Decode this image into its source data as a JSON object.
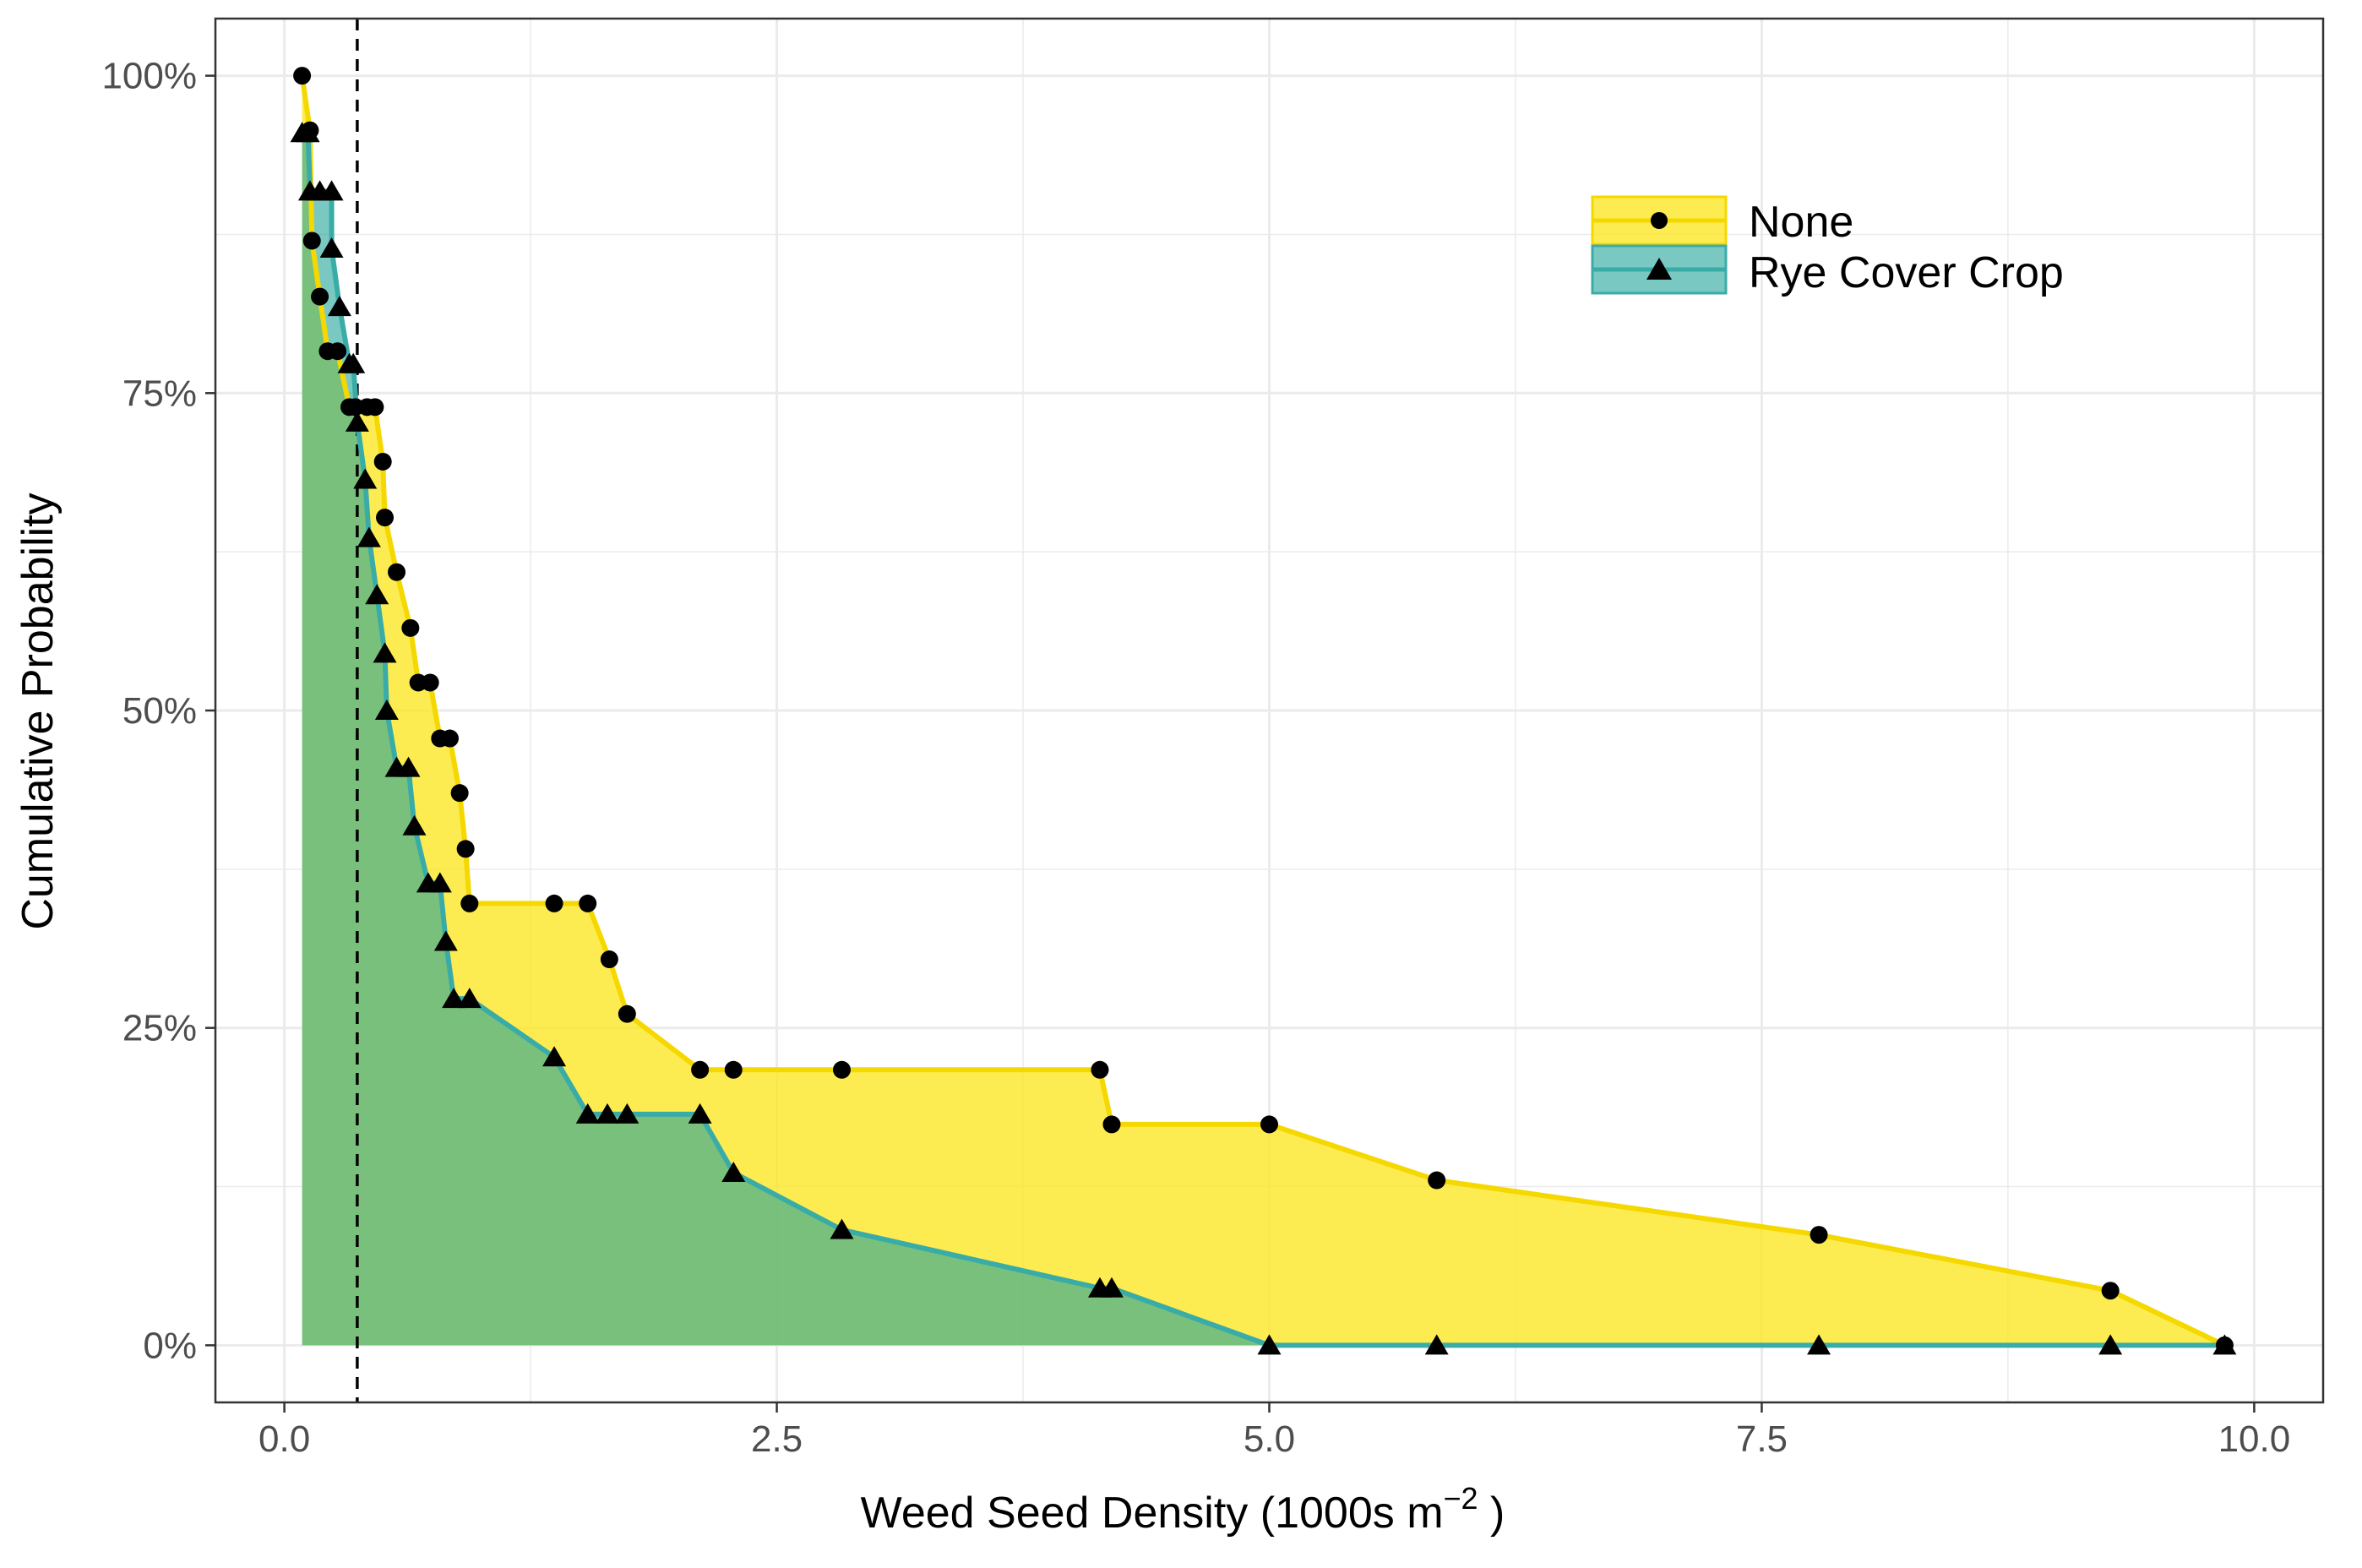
{
  "chart_data": {
    "type": "area",
    "title": "",
    "xlabel": "Weed Seed Density (1000s m",
    "xlabel_superscript": "−2",
    "xlabel_suffix": " )",
    "ylabel": "Cumulative Probability",
    "xlim": [
      -0.35,
      10.35
    ],
    "ylim": [
      -0.045,
      1.045
    ],
    "x_ticks": [
      0.0,
      2.5,
      5.0,
      7.5,
      10.0
    ],
    "x_tick_labels": [
      "0.0",
      "2.5",
      "5.0",
      "7.5",
      "10.0"
    ],
    "y_ticks": [
      0,
      0.25,
      0.5,
      0.75,
      1.0
    ],
    "y_tick_labels": [
      "0%",
      "25%",
      "50%",
      "75%",
      "100%"
    ],
    "grid": true,
    "legend_position": "top-right",
    "reference_line_x": 0.37,
    "series": [
      {
        "name": "None",
        "marker": "circle",
        "color": "#FDE725",
        "line_color": "#F5D800",
        "x": [
          0.09,
          0.13,
          0.14,
          0.18,
          0.22,
          0.27,
          0.33,
          0.36,
          0.42,
          0.46,
          0.5,
          0.51,
          0.57,
          0.64,
          0.68,
          0.74,
          0.79,
          0.84,
          0.89,
          0.92,
          0.94,
          1.37,
          1.54,
          1.65,
          1.74,
          2.11,
          2.28,
          2.83,
          4.14,
          4.2,
          5.0,
          5.85,
          7.79,
          9.27,
          9.85
        ],
        "y": [
          1.0,
          0.957,
          0.87,
          0.826,
          0.783,
          0.783,
          0.739,
          0.739,
          0.739,
          0.739,
          0.696,
          0.652,
          0.609,
          0.565,
          0.522,
          0.522,
          0.478,
          0.478,
          0.435,
          0.391,
          0.348,
          0.348,
          0.348,
          0.304,
          0.261,
          0.217,
          0.217,
          0.217,
          0.217,
          0.174,
          0.174,
          0.13,
          0.087,
          0.043,
          0.0
        ]
      },
      {
        "name": "Rye Cover Crop",
        "marker": "triangle",
        "color": "#21A39A",
        "line_color": "#3AACA8",
        "x": [
          0.09,
          0.12,
          0.13,
          0.18,
          0.24,
          0.24,
          0.28,
          0.33,
          0.35,
          0.37,
          0.41,
          0.43,
          0.47,
          0.51,
          0.52,
          0.57,
          0.63,
          0.66,
          0.73,
          0.79,
          0.82,
          0.86,
          0.94,
          1.37,
          1.54,
          1.64,
          1.74,
          2.11,
          2.28,
          2.83,
          4.14,
          4.2,
          5.0,
          5.85,
          7.79,
          9.27,
          9.85
        ],
        "y": [
          0.955,
          0.955,
          0.909,
          0.909,
          0.909,
          0.864,
          0.818,
          0.773,
          0.773,
          0.727,
          0.682,
          0.636,
          0.591,
          0.545,
          0.5,
          0.455,
          0.455,
          0.409,
          0.364,
          0.364,
          0.318,
          0.273,
          0.273,
          0.227,
          0.182,
          0.182,
          0.182,
          0.182,
          0.136,
          0.091,
          0.045,
          0.045,
          0.0,
          0.0,
          0.0,
          0.0,
          0.0
        ]
      }
    ]
  }
}
